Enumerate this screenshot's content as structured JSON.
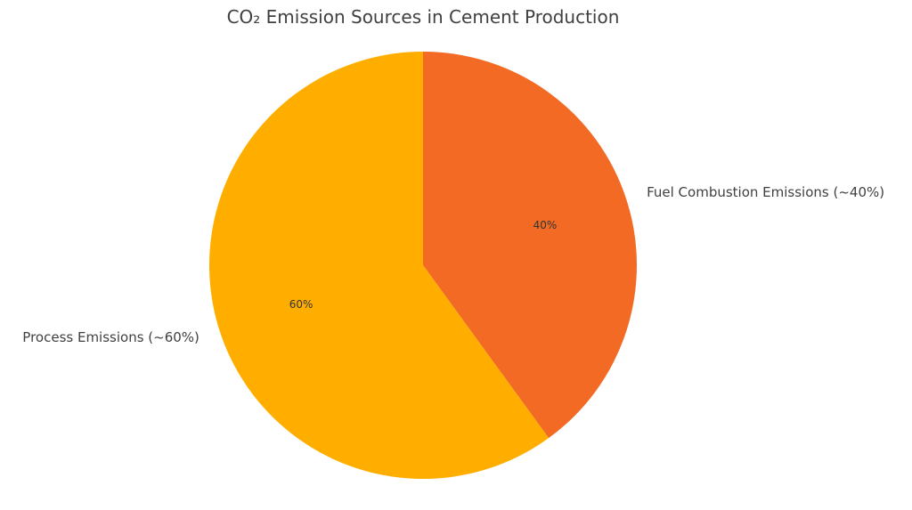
{
  "chart_data": {
    "type": "pie",
    "title": "CO₂ Emission Sources in Cement Production",
    "start_angle_deg": 90,
    "direction": "clockwise",
    "slices": [
      {
        "label": "Fuel Combustion Emissions (~40%)",
        "value": 40,
        "pct_label": "40%",
        "color": "#F26A23"
      },
      {
        "label": "Process Emissions (~60%)",
        "value": 60,
        "pct_label": "60%",
        "color": "#FFAE00"
      }
    ]
  }
}
